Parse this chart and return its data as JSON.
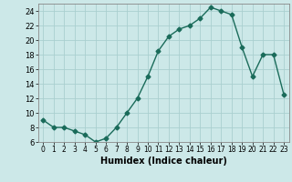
{
  "x": [
    0,
    1,
    2,
    3,
    4,
    5,
    6,
    7,
    8,
    9,
    10,
    11,
    12,
    13,
    14,
    15,
    16,
    17,
    18,
    19,
    20,
    21,
    22,
    23
  ],
  "y": [
    9,
    8,
    8,
    7.5,
    7,
    6,
    6.5,
    8,
    10,
    12,
    15,
    18.5,
    20.5,
    21.5,
    22,
    23,
    24.5,
    24,
    23.5,
    19,
    15,
    18,
    18,
    12.5
  ],
  "line_color": "#1a6b5a",
  "marker": "D",
  "marker_size": 2.5,
  "bg_color": "#cce8e8",
  "grid_color": "#aacfcf",
  "xlabel": "Humidex (Indice chaleur)",
  "xlim": [
    -0.5,
    23.5
  ],
  "ylim": [
    6,
    25
  ],
  "yticks": [
    6,
    8,
    10,
    12,
    14,
    16,
    18,
    20,
    22,
    24
  ],
  "xticks": [
    0,
    1,
    2,
    3,
    4,
    5,
    6,
    7,
    8,
    9,
    10,
    11,
    12,
    13,
    14,
    15,
    16,
    17,
    18,
    19,
    20,
    21,
    22,
    23
  ],
  "label_fontsize": 7,
  "tick_fontsize": 6
}
